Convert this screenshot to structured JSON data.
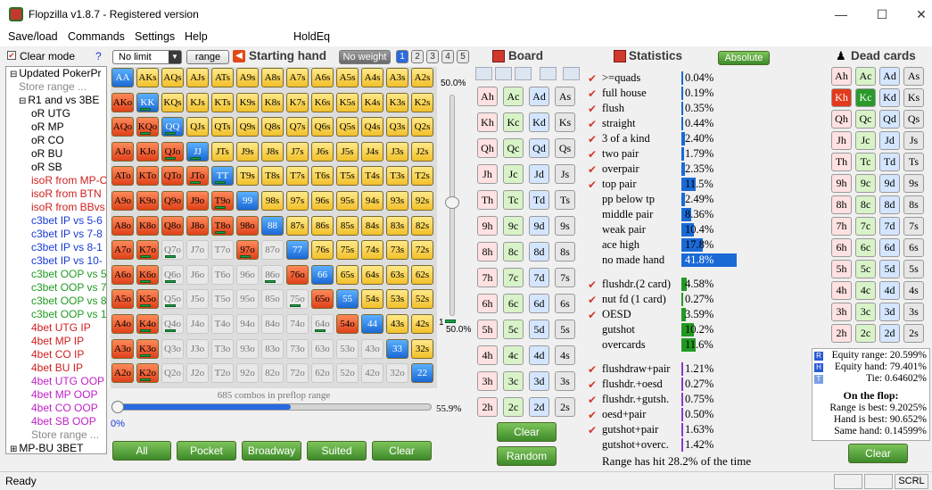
{
  "window": {
    "title": "Flopzilla v1.8.7 - Registered version",
    "minimize": "—",
    "maximize": "☐",
    "close": "✕"
  },
  "menu": {
    "items": [
      "Save/load",
      "Commands",
      "Settings",
      "Help",
      "HoldEq"
    ]
  },
  "sidebar": {
    "clear_mode": "Clear mode",
    "help": "?",
    "items": [
      {
        "t": "Updated PokerPr",
        "c": "#000",
        "x": 4,
        "exp": "⊟"
      },
      {
        "t": "Store range ...",
        "c": "#888",
        "x": 14
      },
      {
        "t": "R1 and vs 3BE",
        "c": "#000",
        "x": 14,
        "exp": "⊟"
      },
      {
        "t": "oR UTG",
        "c": "#000",
        "x": 28
      },
      {
        "t": "oR MP",
        "c": "#000",
        "x": 28
      },
      {
        "t": "oR CO",
        "c": "#000",
        "x": 28
      },
      {
        "t": "oR BU",
        "c": "#000",
        "x": 28
      },
      {
        "t": "oR SB",
        "c": "#000",
        "x": 28
      },
      {
        "t": "isoR from MP-C",
        "c": "#d02020",
        "x": 28
      },
      {
        "t": "isoR from BTN",
        "c": "#d02020",
        "x": 28
      },
      {
        "t": "isoR from BBvs",
        "c": "#d02020",
        "x": 28
      },
      {
        "t": "c3bet IP vs 5-6",
        "c": "#1a3ad6",
        "x": 28
      },
      {
        "t": "c3bet IP vs 7-8",
        "c": "#1a3ad6",
        "x": 28
      },
      {
        "t": "c3bet IP vs 8-1",
        "c": "#1a3ad6",
        "x": 28
      },
      {
        "t": "c3bet IP vs 10-",
        "c": "#1a3ad6",
        "x": 28
      },
      {
        "t": "c3bet OOP vs 5",
        "c": "#229a22",
        "x": 28
      },
      {
        "t": "c3bet OOP vs 7",
        "c": "#229a22",
        "x": 28
      },
      {
        "t": "c3bet OOP vs 8",
        "c": "#229a22",
        "x": 28
      },
      {
        "t": "c3bet OOP vs 1",
        "c": "#229a22",
        "x": 28
      },
      {
        "t": "4bet UTG IP",
        "c": "#d02020",
        "x": 28
      },
      {
        "t": "4bet MP IP",
        "c": "#d02020",
        "x": 28
      },
      {
        "t": "4bet CO IP",
        "c": "#d02020",
        "x": 28
      },
      {
        "t": "4bet BU IP",
        "c": "#d02020",
        "x": 28
      },
      {
        "t": "4bet UTG OOP",
        "c": "#c020c8",
        "x": 28
      },
      {
        "t": "4bet MP OOP",
        "c": "#c020c8",
        "x": 28
      },
      {
        "t": "4bet CO OOP",
        "c": "#c020c8",
        "x": 28
      },
      {
        "t": "4bet SB OOP",
        "c": "#c020c8",
        "x": 28
      },
      {
        "t": "Store range ...",
        "c": "#888",
        "x": 28
      },
      {
        "t": "MP-BU 3BET",
        "c": "#000",
        "x": 4,
        "exp": "⊞"
      }
    ]
  },
  "toolbar": {
    "limit": "No limit",
    "range_btn": "range",
    "starting_hand": "Starting hand",
    "no_weight": "No weight",
    "weights": [
      "1",
      "2",
      "3",
      "4",
      "5"
    ]
  },
  "grid": {
    "ranks": [
      "A",
      "K",
      "Q",
      "J",
      "T",
      "9",
      "8",
      "7",
      "6",
      "5",
      "4",
      "3",
      "2"
    ],
    "colors": [
      "byyyyyyyyyyyy",
      "rbyyyyyyyyyyy",
      "rrbyyyyyyyyyy",
      "rrrbyyyyyyyyy",
      "rrrrbyyyyyyyy",
      "rrrrrbyyyyyyy",
      "rrrrrrbyyyyyy",
      "rrnnnrnbyyyyy",
      "rrnnnnnrbyyyy",
      "rrnnnnnnrbyyy",
      "rrnnnnnnnrbyy",
      "rrnnnnnnnnnby",
      "rrnnnnnnnnnnb"
    ],
    "bars": [
      [
        1,
        1
      ],
      [
        2,
        1
      ],
      [
        2,
        2
      ],
      [
        3,
        2
      ],
      [
        3,
        3
      ],
      [
        4,
        3
      ],
      [
        4,
        4
      ],
      [
        5,
        4
      ],
      [
        6,
        4
      ],
      [
        7,
        1
      ],
      [
        7,
        2
      ],
      [
        7,
        5
      ],
      [
        8,
        1
      ],
      [
        8,
        2
      ],
      [
        8,
        6
      ],
      [
        9,
        1
      ],
      [
        9,
        2
      ],
      [
        9,
        7
      ],
      [
        10,
        1
      ],
      [
        10,
        2
      ],
      [
        10,
        8
      ],
      [
        11,
        1
      ],
      [
        12,
        1
      ]
    ],
    "combos": "685 combos in preflop range",
    "slider_top": "50.0%",
    "slider_mid": "1",
    "slider_mid2": "50.0%",
    "range_pct": "55.9%",
    "range_min": "0%",
    "range_fraction": 0.559
  },
  "buttons": {
    "all": "All",
    "pocket": "Pocket",
    "broadway": "Broadway",
    "suited": "Suited",
    "clear": "Clear"
  },
  "board": {
    "title": "Board",
    "ranks": [
      "A",
      "K",
      "Q",
      "J",
      "T",
      "9",
      "8",
      "7",
      "6",
      "5",
      "4",
      "3",
      "2"
    ],
    "suits": [
      "h",
      "c",
      "d",
      "s"
    ],
    "clear": "Clear",
    "random": "Random"
  },
  "statistics": {
    "title": "Statistics",
    "absolute": "Absolute",
    "groups": [
      [
        {
          "l": ">=quads",
          "v": "0.04%",
          "w": 0,
          "c": "blue",
          "chk": true
        },
        {
          "l": "full house",
          "v": "0.19%",
          "w": 0,
          "c": "blue",
          "chk": true
        },
        {
          "l": "flush",
          "v": "0.35%",
          "w": 0,
          "c": "blue",
          "chk": true
        },
        {
          "l": "straight",
          "v": "0.44%",
          "w": 0,
          "c": "blue",
          "chk": true
        },
        {
          "l": "3 of a kind",
          "v": "2.40%",
          "w": 4,
          "c": "blue",
          "chk": true
        },
        {
          "l": "two pair",
          "v": "1.79%",
          "w": 3,
          "c": "blue",
          "chk": true
        },
        {
          "l": "overpair",
          "v": "2.35%",
          "w": 4,
          "c": "blue",
          "chk": true
        },
        {
          "l": "top pair",
          "v": "11.5%",
          "w": 16,
          "c": "blue",
          "chk": true
        },
        {
          "l": "pp below tp",
          "v": "2.49%",
          "w": 4,
          "c": "blue",
          "chk": false
        },
        {
          "l": "middle pair",
          "v": "8.36%",
          "w": 11,
          "c": "blue",
          "chk": false
        },
        {
          "l": "weak pair",
          "v": "10.4%",
          "w": 14,
          "c": "blue",
          "chk": false
        },
        {
          "l": "ace high",
          "v": "17.8%",
          "w": 24,
          "c": "blue",
          "chk": false
        },
        {
          "l": "no made hand",
          "v": "41.8%",
          "w": 62,
          "c": "blue",
          "chk": false,
          "inv": true
        }
      ],
      [
        {
          "l": "flushdr.(2 card)",
          "v": "4.58%",
          "w": 6,
          "c": "green",
          "chk": true
        },
        {
          "l": "nut fd (1 card)",
          "v": "0.27%",
          "w": 0,
          "c": "green",
          "chk": true
        },
        {
          "l": "OESD",
          "v": "3.59%",
          "w": 5,
          "c": "green",
          "chk": true
        },
        {
          "l": "gutshot",
          "v": "10.2%",
          "w": 14,
          "c": "green",
          "chk": false
        },
        {
          "l": "overcards",
          "v": "11.6%",
          "w": 16,
          "c": "green",
          "chk": false
        }
      ],
      [
        {
          "l": "flushdraw+pair",
          "v": "1.21%",
          "w": 2,
          "c": "purple",
          "chk": true
        },
        {
          "l": "flushdr.+oesd",
          "v": "0.27%",
          "w": 0,
          "c": "purple",
          "chk": true
        },
        {
          "l": "flushdr.+gutsh.",
          "v": "0.75%",
          "w": 1,
          "c": "purple",
          "chk": true
        },
        {
          "l": "oesd+pair",
          "v": "0.50%",
          "w": 1,
          "c": "purple",
          "chk": true
        },
        {
          "l": "gutshot+pair",
          "v": "1.63%",
          "w": 2,
          "c": "purple",
          "chk": true
        },
        {
          "l": "gutshot+overc.",
          "v": "1.42%",
          "w": 2,
          "c": "purple",
          "chk": false
        }
      ]
    ],
    "hit": "Range has hit 28.2% of the time"
  },
  "dead": {
    "title": "Dead cards",
    "dead_cards": [
      "Kh",
      "Kc"
    ],
    "clear": "Clear",
    "equity_range": "Equity range: 20.599%",
    "equity_hand": "Equity hand: 79.401%",
    "tie": "Tie: 0.64602%",
    "flop_title": "On the flop:",
    "range_best": "Range is best: 9.2025%",
    "hand_best": "Hand is best: 90.652%",
    "same": "Same hand: 0.14599%",
    "flags": [
      "R",
      "H",
      "T"
    ]
  },
  "status": {
    "text": "Ready",
    "scrl": "SCRL"
  }
}
